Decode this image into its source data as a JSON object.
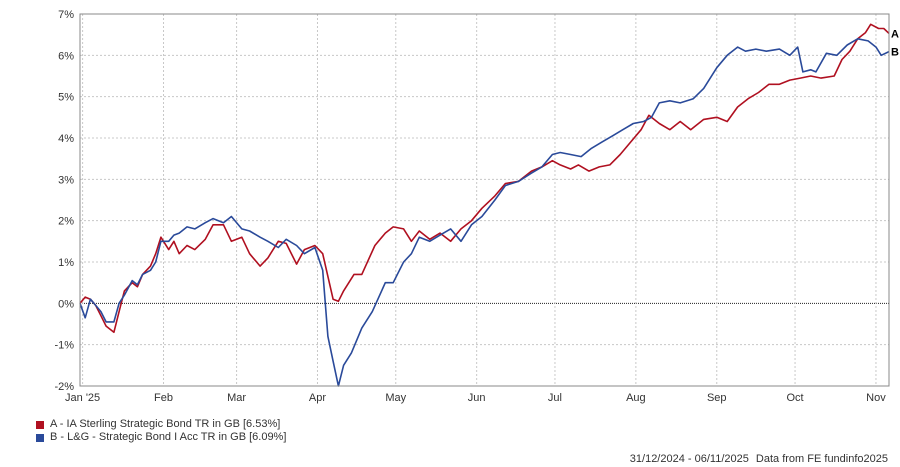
{
  "chart_data": {
    "type": "line",
    "ylim": [
      -2,
      7
    ],
    "y_ticks": [
      "-2%",
      "-1%",
      "0%",
      "1%",
      "2%",
      "3%",
      "4%",
      "5%",
      "6%",
      "7%"
    ],
    "x_range": [
      "2024-12-31",
      "2025-11-06"
    ],
    "x_ticks": [
      {
        "label": "Jan '25",
        "date": "2025-01-01"
      },
      {
        "label": "Feb",
        "date": "2025-02-01"
      },
      {
        "label": "Mar",
        "date": "2025-03-01"
      },
      {
        "label": "Apr",
        "date": "2025-04-01"
      },
      {
        "label": "May",
        "date": "2025-05-01"
      },
      {
        "label": "Jun",
        "date": "2025-06-01"
      },
      {
        "label": "Jul",
        "date": "2025-07-01"
      },
      {
        "label": "Aug",
        "date": "2025-08-01"
      },
      {
        "label": "Sep",
        "date": "2025-09-01"
      },
      {
        "label": "Oct",
        "date": "2025-10-01"
      },
      {
        "label": "Nov",
        "date": "2025-11-01"
      }
    ],
    "grid": true,
    "zero_line": true,
    "series": [
      {
        "name": "A - IA Sterling Strategic Bond TR in GB [6.53%]",
        "end_marker": "A",
        "color": "#b01020",
        "points": [
          [
            "2024-12-31",
            0.0
          ],
          [
            "2025-01-02",
            0.15
          ],
          [
            "2025-01-04",
            0.1
          ],
          [
            "2025-01-06",
            -0.05
          ],
          [
            "2025-01-08",
            -0.3
          ],
          [
            "2025-01-10",
            -0.55
          ],
          [
            "2025-01-13",
            -0.7
          ],
          [
            "2025-01-15",
            -0.2
          ],
          [
            "2025-01-17",
            0.3
          ],
          [
            "2025-01-20",
            0.5
          ],
          [
            "2025-01-22",
            0.4
          ],
          [
            "2025-01-24",
            0.7
          ],
          [
            "2025-01-27",
            0.9
          ],
          [
            "2025-01-29",
            1.2
          ],
          [
            "2025-01-31",
            1.6
          ],
          [
            "2025-02-03",
            1.3
          ],
          [
            "2025-02-05",
            1.5
          ],
          [
            "2025-02-07",
            1.2
          ],
          [
            "2025-02-10",
            1.4
          ],
          [
            "2025-02-13",
            1.3
          ],
          [
            "2025-02-17",
            1.55
          ],
          [
            "2025-02-20",
            1.9
          ],
          [
            "2025-02-24",
            1.9
          ],
          [
            "2025-02-27",
            1.5
          ],
          [
            "2025-03-03",
            1.6
          ],
          [
            "2025-03-06",
            1.2
          ],
          [
            "2025-03-10",
            0.9
          ],
          [
            "2025-03-13",
            1.1
          ],
          [
            "2025-03-17",
            1.5
          ],
          [
            "2025-03-20",
            1.45
          ],
          [
            "2025-03-24",
            0.95
          ],
          [
            "2025-03-27",
            1.3
          ],
          [
            "2025-03-31",
            1.4
          ],
          [
            "2025-04-03",
            1.2
          ],
          [
            "2025-04-07",
            0.1
          ],
          [
            "2025-04-09",
            0.05
          ],
          [
            "2025-04-11",
            0.3
          ],
          [
            "2025-04-15",
            0.7
          ],
          [
            "2025-04-18",
            0.7
          ],
          [
            "2025-04-23",
            1.4
          ],
          [
            "2025-04-27",
            1.7
          ],
          [
            "2025-04-30",
            1.85
          ],
          [
            "2025-05-04",
            1.8
          ],
          [
            "2025-05-07",
            1.5
          ],
          [
            "2025-05-10",
            1.75
          ],
          [
            "2025-05-14",
            1.55
          ],
          [
            "2025-05-18",
            1.7
          ],
          [
            "2025-05-22",
            1.5
          ],
          [
            "2025-05-26",
            1.8
          ],
          [
            "2025-05-30",
            2.0
          ],
          [
            "2025-06-03",
            2.3
          ],
          [
            "2025-06-08",
            2.6
          ],
          [
            "2025-06-12",
            2.9
          ],
          [
            "2025-06-17",
            2.95
          ],
          [
            "2025-06-22",
            3.2
          ],
          [
            "2025-06-26",
            3.3
          ],
          [
            "2025-06-30",
            3.45
          ],
          [
            "2025-07-03",
            3.35
          ],
          [
            "2025-07-07",
            3.25
          ],
          [
            "2025-07-10",
            3.35
          ],
          [
            "2025-07-14",
            3.2
          ],
          [
            "2025-07-18",
            3.3
          ],
          [
            "2025-07-22",
            3.35
          ],
          [
            "2025-07-26",
            3.6
          ],
          [
            "2025-07-30",
            3.9
          ],
          [
            "2025-08-03",
            4.2
          ],
          [
            "2025-08-06",
            4.55
          ],
          [
            "2025-08-10",
            4.35
          ],
          [
            "2025-08-14",
            4.2
          ],
          [
            "2025-08-18",
            4.4
          ],
          [
            "2025-08-22",
            4.2
          ],
          [
            "2025-08-27",
            4.45
          ],
          [
            "2025-09-01",
            4.5
          ],
          [
            "2025-09-05",
            4.4
          ],
          [
            "2025-09-09",
            4.75
          ],
          [
            "2025-09-13",
            4.95
          ],
          [
            "2025-09-17",
            5.1
          ],
          [
            "2025-09-21",
            5.3
          ],
          [
            "2025-09-25",
            5.3
          ],
          [
            "2025-09-29",
            5.4
          ],
          [
            "2025-10-03",
            5.45
          ],
          [
            "2025-10-07",
            5.5
          ],
          [
            "2025-10-11",
            5.45
          ],
          [
            "2025-10-16",
            5.5
          ],
          [
            "2025-10-19",
            5.9
          ],
          [
            "2025-10-22",
            6.1
          ],
          [
            "2025-10-25",
            6.4
          ],
          [
            "2025-10-28",
            6.55
          ],
          [
            "2025-10-30",
            6.75
          ],
          [
            "2025-11-02",
            6.65
          ],
          [
            "2025-11-04",
            6.65
          ],
          [
            "2025-11-06",
            6.53
          ]
        ]
      },
      {
        "name": "B - L&G - Strategic Bond I Acc TR in GB [6.09%]",
        "end_marker": "B",
        "color": "#2a4a9a",
        "points": [
          [
            "2024-12-31",
            0.0
          ],
          [
            "2025-01-02",
            -0.35
          ],
          [
            "2025-01-04",
            0.1
          ],
          [
            "2025-01-06",
            -0.05
          ],
          [
            "2025-01-08",
            -0.2
          ],
          [
            "2025-01-10",
            -0.45
          ],
          [
            "2025-01-13",
            -0.45
          ],
          [
            "2025-01-15",
            0.0
          ],
          [
            "2025-01-17",
            0.2
          ],
          [
            "2025-01-20",
            0.55
          ],
          [
            "2025-01-22",
            0.45
          ],
          [
            "2025-01-24",
            0.7
          ],
          [
            "2025-01-27",
            0.8
          ],
          [
            "2025-01-29",
            1.0
          ],
          [
            "2025-01-31",
            1.5
          ],
          [
            "2025-02-03",
            1.5
          ],
          [
            "2025-02-05",
            1.65
          ],
          [
            "2025-02-07",
            1.7
          ],
          [
            "2025-02-10",
            1.85
          ],
          [
            "2025-02-13",
            1.8
          ],
          [
            "2025-02-17",
            1.95
          ],
          [
            "2025-02-20",
            2.05
          ],
          [
            "2025-02-24",
            1.95
          ],
          [
            "2025-02-27",
            2.1
          ],
          [
            "2025-03-03",
            1.8
          ],
          [
            "2025-03-06",
            1.75
          ],
          [
            "2025-03-10",
            1.6
          ],
          [
            "2025-03-13",
            1.5
          ],
          [
            "2025-03-17",
            1.35
          ],
          [
            "2025-03-20",
            1.55
          ],
          [
            "2025-03-24",
            1.4
          ],
          [
            "2025-03-27",
            1.2
          ],
          [
            "2025-03-31",
            1.35
          ],
          [
            "2025-04-03",
            0.8
          ],
          [
            "2025-04-05",
            -0.8
          ],
          [
            "2025-04-07",
            -1.4
          ],
          [
            "2025-04-09",
            -2.0
          ],
          [
            "2025-04-11",
            -1.5
          ],
          [
            "2025-04-14",
            -1.2
          ],
          [
            "2025-04-18",
            -0.6
          ],
          [
            "2025-04-22",
            -0.2
          ],
          [
            "2025-04-27",
            0.5
          ],
          [
            "2025-04-30",
            0.5
          ],
          [
            "2025-05-04",
            1.0
          ],
          [
            "2025-05-07",
            1.2
          ],
          [
            "2025-05-10",
            1.6
          ],
          [
            "2025-05-14",
            1.5
          ],
          [
            "2025-05-18",
            1.65
          ],
          [
            "2025-05-22",
            1.8
          ],
          [
            "2025-05-26",
            1.5
          ],
          [
            "2025-05-30",
            1.9
          ],
          [
            "2025-06-03",
            2.1
          ],
          [
            "2025-06-08",
            2.5
          ],
          [
            "2025-06-12",
            2.85
          ],
          [
            "2025-06-17",
            2.95
          ],
          [
            "2025-06-22",
            3.15
          ],
          [
            "2025-06-26",
            3.3
          ],
          [
            "2025-06-30",
            3.6
          ],
          [
            "2025-07-03",
            3.65
          ],
          [
            "2025-07-07",
            3.6
          ],
          [
            "2025-07-11",
            3.55
          ],
          [
            "2025-07-15",
            3.75
          ],
          [
            "2025-07-19",
            3.9
          ],
          [
            "2025-07-23",
            4.05
          ],
          [
            "2025-07-27",
            4.2
          ],
          [
            "2025-07-31",
            4.35
          ],
          [
            "2025-08-04",
            4.4
          ],
          [
            "2025-08-07",
            4.5
          ],
          [
            "2025-08-10",
            4.85
          ],
          [
            "2025-08-14",
            4.9
          ],
          [
            "2025-08-18",
            4.85
          ],
          [
            "2025-08-23",
            4.95
          ],
          [
            "2025-08-27",
            5.2
          ],
          [
            "2025-09-01",
            5.7
          ],
          [
            "2025-09-05",
            6.0
          ],
          [
            "2025-09-09",
            6.2
          ],
          [
            "2025-09-12",
            6.1
          ],
          [
            "2025-09-16",
            6.15
          ],
          [
            "2025-09-20",
            6.1
          ],
          [
            "2025-09-25",
            6.15
          ],
          [
            "2025-09-29",
            6.0
          ],
          [
            "2025-10-02",
            6.2
          ],
          [
            "2025-10-04",
            5.6
          ],
          [
            "2025-10-07",
            5.65
          ],
          [
            "2025-10-09",
            5.6
          ],
          [
            "2025-10-13",
            6.05
          ],
          [
            "2025-10-17",
            6.0
          ],
          [
            "2025-10-21",
            6.25
          ],
          [
            "2025-10-25",
            6.4
          ],
          [
            "2025-10-29",
            6.35
          ],
          [
            "2025-11-01",
            6.2
          ],
          [
            "2025-11-03",
            6.0
          ],
          [
            "2025-11-06",
            6.09
          ]
        ]
      }
    ]
  },
  "footer": {
    "date_range": "31/12/2024 - 06/11/2025",
    "source": "Data from FE fundinfo2025"
  }
}
